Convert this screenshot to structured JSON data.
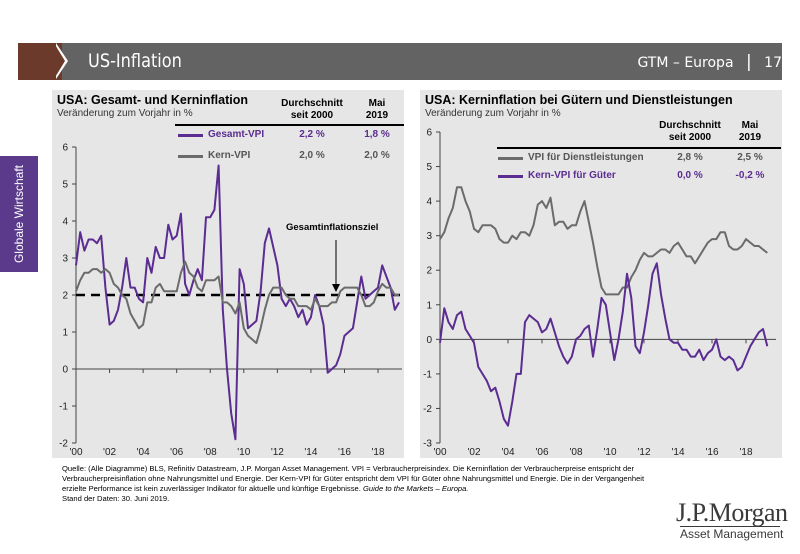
{
  "header": {
    "title": "US-Inflation",
    "series_label": "GTM – Europa",
    "separator": "|",
    "page_number": "17"
  },
  "sidebar": {
    "label": "Globale Wirtschaft"
  },
  "colors": {
    "purple": "#5b2c91",
    "grey": "#6b6b6b",
    "brown": "#6b3a2a",
    "panel": "#e6e6e6"
  },
  "chart_data": [
    {
      "type": "line",
      "title": "USA: Gesamt- und Kerninflation",
      "subtitle": "Veränderung zum Vorjahr in %",
      "table_headers": [
        "Durchschnitt seit 2000",
        "Mai 2019"
      ],
      "table_header_lines": [
        [
          "Durchschnitt",
          "seit 2000"
        ],
        [
          "Mai",
          "2019"
        ]
      ],
      "x_start": 2000,
      "x_step": 0.25,
      "x_ticks": [
        "'00",
        "'02",
        "'04",
        "'06",
        "'08",
        "'10",
        "'12",
        "'14",
        "'16",
        "'18"
      ],
      "ylim": [
        -2,
        6
      ],
      "y_ticks": [
        "6",
        "5",
        "4",
        "3",
        "2",
        "1",
        "0",
        "-1",
        "-2"
      ],
      "annotation": "Gesamtinflationsziel",
      "target_line": 2,
      "series": [
        {
          "name": "Gesamt-VPI",
          "color": "#5b2c91",
          "avg": "2,2 %",
          "latest": "1,8 %",
          "values": [
            2.8,
            3.7,
            3.2,
            3.5,
            3.5,
            3.4,
            3.6,
            2.2,
            1.2,
            1.3,
            1.6,
            2.2,
            3.0,
            2.2,
            2.2,
            1.9,
            1.8,
            3.0,
            2.6,
            3.3,
            3.0,
            3.0,
            3.9,
            3.5,
            3.6,
            4.2,
            2.3,
            2.0,
            2.4,
            2.7,
            2.4,
            4.1,
            4.1,
            4.3,
            5.5,
            1.6,
            0.0,
            -1.2,
            -1.9,
            2.7,
            2.3,
            1.1,
            1.2,
            1.3,
            2.1,
            3.4,
            3.8,
            3.3,
            2.8,
            1.9,
            1.7,
            1.9,
            1.7,
            1.4,
            1.6,
            1.2,
            1.4,
            2.0,
            1.7,
            1.2,
            -0.1,
            0.0,
            0.1,
            0.4,
            0.9,
            1.0,
            1.1,
            1.8,
            2.5,
            1.9,
            2.0,
            2.1,
            2.2,
            2.8,
            2.5,
            2.2,
            1.6,
            1.8
          ]
        },
        {
          "name": "Kern-VPI",
          "color": "#6b6b6b",
          "avg": "2,0 %",
          "latest": "2,0 %",
          "values": [
            2.1,
            2.4,
            2.6,
            2.6,
            2.7,
            2.7,
            2.6,
            2.7,
            2.6,
            2.3,
            2.2,
            2.0,
            1.9,
            1.5,
            1.3,
            1.1,
            1.2,
            1.8,
            1.8,
            2.2,
            2.3,
            2.1,
            2.1,
            2.1,
            2.1,
            2.6,
            2.9,
            2.6,
            2.5,
            2.2,
            2.1,
            2.4,
            2.4,
            2.4,
            2.5,
            1.8,
            1.8,
            1.7,
            1.5,
            1.8,
            1.1,
            0.9,
            0.8,
            0.7,
            1.1,
            1.6,
            2.0,
            2.2,
            2.2,
            2.2,
            2.0,
            1.9,
            1.9,
            1.7,
            1.7,
            1.7,
            1.6,
            1.9,
            1.7,
            1.7,
            1.7,
            1.8,
            1.8,
            2.1,
            2.2,
            2.2,
            2.2,
            2.2,
            2.0,
            1.7,
            1.7,
            1.8,
            2.1,
            2.3,
            2.2,
            2.2,
            2.0,
            2.0
          ]
        }
      ]
    },
    {
      "type": "line",
      "title": "USA: Kerninflation bei Gütern und Dienstleistungen",
      "subtitle": "Veränderung zum Vorjahr in %",
      "table_headers": [
        "Durchschnitt seit 2000",
        "Mai 2019"
      ],
      "table_header_lines": [
        [
          "Durchschnitt",
          "seit 2000"
        ],
        [
          "Mai",
          "2019"
        ]
      ],
      "x_start": 2000,
      "x_step": 0.25,
      "x_ticks": [
        "'00",
        "'02",
        "'04",
        "'06",
        "'08",
        "'10",
        "'12",
        "'14",
        "'16",
        "'18"
      ],
      "ylim": [
        -3,
        6
      ],
      "y_ticks": [
        "6",
        "5",
        "4",
        "3",
        "2",
        "1",
        "0",
        "-1",
        "-2",
        "-3"
      ],
      "series": [
        {
          "name": "VPI für Dienstleistungen",
          "color": "#6b6b6b",
          "avg": "2,8 %",
          "latest": "2,5 %",
          "values": [
            2.9,
            3.1,
            3.5,
            3.8,
            4.4,
            4.4,
            4.0,
            3.7,
            3.2,
            3.1,
            3.3,
            3.3,
            3.3,
            3.2,
            2.9,
            2.8,
            2.8,
            3.0,
            2.9,
            3.1,
            3.1,
            3.0,
            3.3,
            3.9,
            4.0,
            3.8,
            4.1,
            3.3,
            3.4,
            3.4,
            3.2,
            3.3,
            3.3,
            3.7,
            4.0,
            3.4,
            2.8,
            2.1,
            1.5,
            1.3,
            1.3,
            1.3,
            1.3,
            1.5,
            1.5,
            1.8,
            2.0,
            2.3,
            2.5,
            2.4,
            2.4,
            2.5,
            2.6,
            2.6,
            2.5,
            2.7,
            2.8,
            2.6,
            2.4,
            2.4,
            2.2,
            2.4,
            2.6,
            2.8,
            2.9,
            2.9,
            3.1,
            3.1,
            2.7,
            2.6,
            2.6,
            2.7,
            2.9,
            2.8,
            2.7,
            2.7,
            2.6,
            2.5
          ]
        },
        {
          "name": "Kern-VPI für Güter",
          "color": "#5b2c91",
          "avg": "0,0 %",
          "latest": "-0,2 %",
          "values": [
            -0.1,
            0.9,
            0.5,
            0.3,
            0.7,
            0.8,
            0.3,
            0.1,
            -0.1,
            -0.8,
            -1.0,
            -1.2,
            -1.5,
            -1.4,
            -1.8,
            -2.3,
            -2.5,
            -1.8,
            -1.0,
            -1.0,
            0.5,
            0.7,
            0.6,
            0.5,
            0.2,
            0.3,
            0.6,
            0.2,
            -0.2,
            -0.5,
            -0.7,
            -0.5,
            0.0,
            0.1,
            0.3,
            0.4,
            -0.5,
            0.3,
            1.2,
            1.0,
            0.2,
            -0.6,
            0.0,
            0.8,
            1.9,
            1.2,
            -0.2,
            -0.4,
            0.2,
            1.0,
            1.9,
            2.2,
            1.3,
            0.6,
            0.0,
            -0.1,
            -0.1,
            -0.3,
            -0.3,
            -0.5,
            -0.5,
            -0.3,
            -0.6,
            -0.4,
            -0.3,
            0.0,
            -0.5,
            -0.6,
            -0.5,
            -0.6,
            -0.9,
            -0.8,
            -0.5,
            -0.2,
            0.0,
            0.2,
            0.3,
            -0.2
          ]
        }
      ]
    }
  ],
  "footer": {
    "text": "Quelle: (Alle Diagramme) BLS, Refinitiv Datastream, J.P. Morgan Asset Management. VPI = Verbraucherpreisindex. Die Kerninflation der Verbraucherpreise entspricht der Verbraucherpreisinflation ohne Nahrungsmittel und Energie. Der Kern-VPI für Güter entspricht dem VPI für Güter ohne Nahrungsmittel und Energie. Die in der Vergangenheit erzielte Performance ist kein zuverlässiger Indikator für aktuelle und künftige Ergebnisse. ",
    "italic": "Guide to the Markets – Europa.",
    "date": "Stand der Daten: 30. Juni 2019."
  },
  "logo": {
    "brand": "J.P.Morgan",
    "sub": "Asset Management"
  }
}
